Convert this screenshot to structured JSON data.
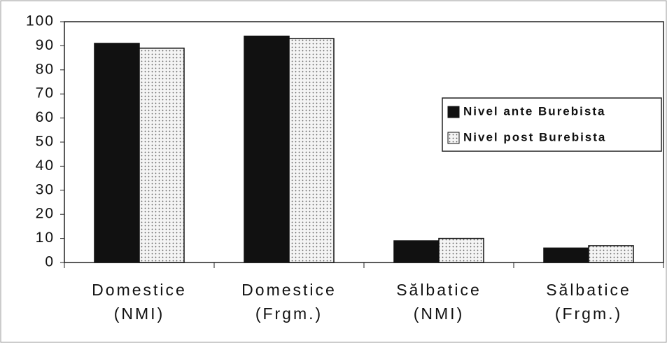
{
  "chart_data": {
    "type": "bar",
    "categories": [
      "Domestice\n(NMI)",
      "Domestice\n(Frgm.)",
      "Sălbatice\n(NMI)",
      "Sălbatice\n(Frgm.)"
    ],
    "series": [
      {
        "name": "Nivel ante Burebista",
        "color": "#111111",
        "values": [
          91,
          94,
          9,
          6
        ]
      },
      {
        "name": "Nivel post Burebista",
        "color": "#f4f4f4",
        "values": [
          89,
          93,
          10,
          7
        ]
      }
    ],
    "ylim": [
      0,
      100
    ],
    "yticks": [
      0,
      10,
      20,
      30,
      40,
      50,
      60,
      70,
      80,
      90,
      100
    ],
    "grid": false,
    "legend": "right"
  }
}
